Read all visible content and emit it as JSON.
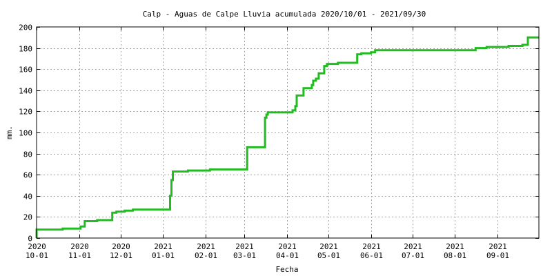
{
  "chart_data": {
    "type": "line",
    "title": "Calp - Aguas de Calpe Lluvia acumulada 2020/10/01 - 2021/09/30",
    "xlabel": "Fecha",
    "ylabel": "mm.",
    "ylim": [
      0,
      200
    ],
    "xlim": [
      "2020-10-01",
      "2021-09-30"
    ],
    "grid": true,
    "series_color": "#22bb22",
    "y_ticks": [
      0,
      20,
      40,
      60,
      80,
      100,
      120,
      140,
      160,
      180,
      200
    ],
    "x_ticks": [
      {
        "date": "2020-10-01",
        "year": "2020",
        "label": "10-01"
      },
      {
        "date": "2020-11-01",
        "year": "2020",
        "label": "11-01"
      },
      {
        "date": "2020-12-01",
        "year": "2020",
        "label": "12-01"
      },
      {
        "date": "2021-01-01",
        "year": "2021",
        "label": "01-01"
      },
      {
        "date": "2021-02-01",
        "year": "2021",
        "label": "02-01"
      },
      {
        "date": "2021-03-01",
        "year": "2021",
        "label": "03-01"
      },
      {
        "date": "2021-04-01",
        "year": "2021",
        "label": "04-01"
      },
      {
        "date": "2021-05-01",
        "year": "2021",
        "label": "05-01"
      },
      {
        "date": "2021-06-01",
        "year": "2021",
        "label": "06-01"
      },
      {
        "date": "2021-07-01",
        "year": "2021",
        "label": "07-01"
      },
      {
        "date": "2021-08-01",
        "year": "2021",
        "label": "08-01"
      },
      {
        "date": "2021-09-01",
        "year": "2021",
        "label": "09-01"
      }
    ],
    "series": [
      {
        "points": [
          [
            "2020-10-01",
            0
          ],
          [
            "2020-10-01",
            8
          ],
          [
            "2020-10-20",
            8
          ],
          [
            "2020-10-20",
            9
          ],
          [
            "2020-11-02",
            9
          ],
          [
            "2020-11-02",
            11
          ],
          [
            "2020-11-05",
            11
          ],
          [
            "2020-11-05",
            16
          ],
          [
            "2020-11-14",
            16
          ],
          [
            "2020-11-14",
            17
          ],
          [
            "2020-11-25",
            17
          ],
          [
            "2020-11-25",
            24
          ],
          [
            "2020-11-28",
            24
          ],
          [
            "2020-11-28",
            25
          ],
          [
            "2020-12-04",
            25
          ],
          [
            "2020-12-04",
            26
          ],
          [
            "2020-12-10",
            26
          ],
          [
            "2020-12-10",
            27
          ],
          [
            "2021-01-06",
            27
          ],
          [
            "2021-01-06",
            40
          ],
          [
            "2021-01-07",
            40
          ],
          [
            "2021-01-07",
            55
          ],
          [
            "2021-01-08",
            55
          ],
          [
            "2021-01-08",
            63
          ],
          [
            "2021-01-19",
            63
          ],
          [
            "2021-01-19",
            64
          ],
          [
            "2021-02-04",
            64
          ],
          [
            "2021-02-04",
            65
          ],
          [
            "2021-03-03",
            65
          ],
          [
            "2021-03-03",
            86
          ],
          [
            "2021-03-16",
            86
          ],
          [
            "2021-03-16",
            114
          ],
          [
            "2021-03-17",
            114
          ],
          [
            "2021-03-17",
            117
          ],
          [
            "2021-03-18",
            117
          ],
          [
            "2021-03-18",
            119
          ],
          [
            "2021-04-05",
            119
          ],
          [
            "2021-04-05",
            121
          ],
          [
            "2021-04-07",
            121
          ],
          [
            "2021-04-07",
            125
          ],
          [
            "2021-04-08",
            125
          ],
          [
            "2021-04-08",
            135
          ],
          [
            "2021-04-13",
            135
          ],
          [
            "2021-04-13",
            142
          ],
          [
            "2021-04-19",
            142
          ],
          [
            "2021-04-19",
            145
          ],
          [
            "2021-04-20",
            145
          ],
          [
            "2021-04-20",
            149
          ],
          [
            "2021-04-22",
            149
          ],
          [
            "2021-04-22",
            151
          ],
          [
            "2021-04-24",
            151
          ],
          [
            "2021-04-24",
            156
          ],
          [
            "2021-04-28",
            156
          ],
          [
            "2021-04-28",
            163
          ],
          [
            "2021-04-30",
            163
          ],
          [
            "2021-04-30",
            165
          ],
          [
            "2021-05-08",
            165
          ],
          [
            "2021-05-08",
            166
          ],
          [
            "2021-05-22",
            166
          ],
          [
            "2021-05-22",
            174
          ],
          [
            "2021-05-25",
            174
          ],
          [
            "2021-05-25",
            175
          ],
          [
            "2021-06-01",
            175
          ],
          [
            "2021-06-01",
            176
          ],
          [
            "2021-06-04",
            176
          ],
          [
            "2021-06-04",
            178
          ],
          [
            "2021-08-16",
            178
          ],
          [
            "2021-08-16",
            180
          ],
          [
            "2021-08-24",
            180
          ],
          [
            "2021-08-24",
            181
          ],
          [
            "2021-09-09",
            181
          ],
          [
            "2021-09-09",
            182
          ],
          [
            "2021-09-19",
            182
          ],
          [
            "2021-09-19",
            183
          ],
          [
            "2021-09-23",
            183
          ],
          [
            "2021-09-23",
            190
          ],
          [
            "2021-09-30",
            190
          ]
        ]
      }
    ]
  }
}
